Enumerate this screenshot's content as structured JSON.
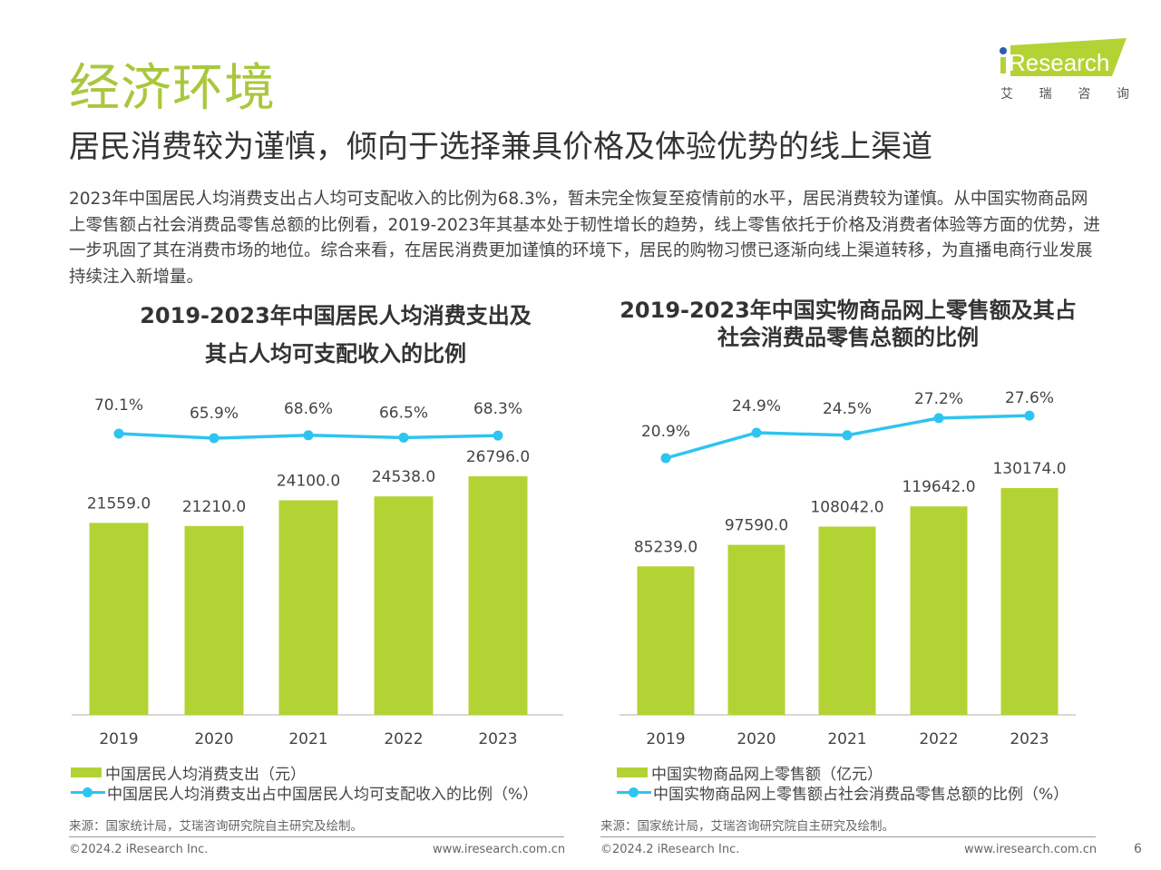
{
  "header": {
    "title": "经济环境",
    "subtitle": "居民消费较为谨慎，倾向于选择兼具价格及体验优势的线上渠道",
    "logo_text": "iResearch",
    "logo_cn": [
      "艾",
      "瑞",
      "咨",
      "询"
    ]
  },
  "intro": "2023年中国居民人均消费支出占人均可支配收入的比例为68.3%，暂未完全恢复至疫情前的水平，居民消费较为谨慎。从中国实物商品网上零售额占社会消费品零售总额的比例看，2019-2023年其基本处于韧性增长的趋势，线上零售依托于价格及消费者体验等方面的优势，进一步巩固了其在消费市场的地位。综合来看，在居民消费更加谨慎的环境下，居民的购物习惯已逐渐向线上渠道转移，为直播电商行业发展持续注入新增量。",
  "colors": {
    "bar": "#b3d335",
    "line": "#2ec4f0",
    "title": "#a8c83c"
  },
  "chart_data": [
    {
      "type": "bar+line",
      "title_line1": "2019-2023年中国居民人均消费支出及",
      "title_line2": "其占人均可支配收入的比例",
      "categories": [
        "2019",
        "2020",
        "2021",
        "2022",
        "2023"
      ],
      "series": [
        {
          "name": "中国居民人均消费支出（元）",
          "type": "bar",
          "values": [
            21559.0,
            21210.0,
            24100.0,
            24538.0,
            26796.0
          ],
          "labels": [
            "21559.0",
            "21210.0",
            "24100.0",
            "24538.0",
            "26796.0"
          ]
        },
        {
          "name": "中国居民人均消费支出占中国居民人均可支配收入的比例（%）",
          "type": "line",
          "values": [
            70.1,
            65.9,
            68.6,
            66.5,
            68.3
          ],
          "labels": [
            "70.1%",
            "65.9%",
            "68.6%",
            "66.5%",
            "68.3%"
          ]
        }
      ],
      "grid": false,
      "legend": "bottom-left",
      "source": "来源：国家统计局，艾瑞咨询研究院自主研究及绘制。"
    },
    {
      "type": "bar+line",
      "title_line1": "2019-2023年中国实物商品网上零售额及其占",
      "title_line2": "社会消费品零售总额的比例",
      "categories": [
        "2019",
        "2020",
        "2021",
        "2022",
        "2023"
      ],
      "series": [
        {
          "name": "中国实物商品网上零售额（亿元）",
          "type": "bar",
          "values": [
            85239.0,
            97590.0,
            108042.0,
            119642.0,
            130174.0
          ],
          "labels": [
            "85239.0",
            "97590.0",
            "108042.0",
            "119642.0",
            "130174.0"
          ]
        },
        {
          "name": "中国实物商品网上零售额占社会消费品零售总额的比例（%）",
          "type": "line",
          "values": [
            20.9,
            24.9,
            24.5,
            27.2,
            27.6
          ],
          "labels": [
            "20.9%",
            "24.9%",
            "24.5%",
            "27.2%",
            "27.6%"
          ]
        }
      ],
      "grid": false,
      "legend": "bottom-left",
      "source": "来源：国家统计局，艾瑞咨询研究院自主研究及绘制。"
    }
  ],
  "footer": {
    "copyright": "©2024.2 iResearch Inc.",
    "website": "www.iresearch.com.cn",
    "page": "6"
  }
}
